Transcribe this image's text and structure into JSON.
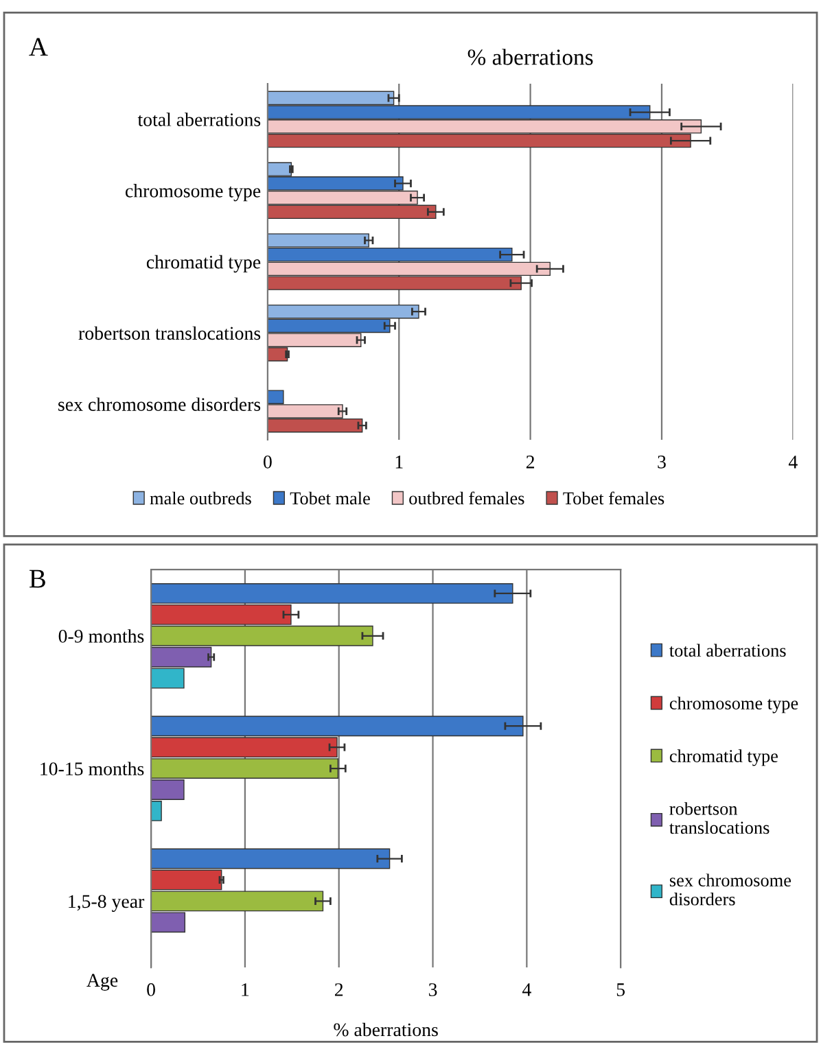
{
  "chart_data": [
    {
      "type": "bar",
      "orientation": "horizontal",
      "title": "% aberrations",
      "annotations": [
        "A"
      ],
      "categories": [
        "total aberrations",
        "chromosome type",
        "chromatid type",
        "robertson translocations",
        "sex chromosome disorders"
      ],
      "series": [
        {
          "name": "male outbreds",
          "color": "#8db3e2",
          "values": [
            0.96,
            0.18,
            0.77,
            1.15,
            null
          ],
          "errors": [
            0.04,
            0.01,
            0.03,
            0.05,
            null
          ]
        },
        {
          "name": "Tobet male",
          "color": "#3c78c8",
          "values": [
            2.91,
            1.03,
            1.86,
            0.93,
            0.12
          ],
          "errors": [
            0.15,
            0.06,
            0.09,
            0.04,
            null
          ]
        },
        {
          "name": "outbred females",
          "color": "#f2c6c6",
          "values": [
            3.3,
            1.14,
            2.15,
            0.71,
            0.57
          ],
          "errors": [
            0.15,
            0.05,
            0.1,
            0.03,
            0.03
          ]
        },
        {
          "name": "Tobet females",
          "color": "#c0504d",
          "values": [
            3.22,
            1.28,
            1.93,
            0.15,
            0.72
          ],
          "errors": [
            0.15,
            0.06,
            0.08,
            0.01,
            0.03
          ]
        }
      ],
      "xlim": [
        0,
        4
      ],
      "xticks": [
        0,
        1,
        2,
        3,
        4
      ],
      "grid": "x",
      "legend": "bottom"
    },
    {
      "type": "bar",
      "orientation": "horizontal",
      "annotations": [
        "B"
      ],
      "xlabel": "% aberrations",
      "ylabel": "Age",
      "categories": [
        "0-9 months",
        "10-15 months",
        "1,5-8 year"
      ],
      "series": [
        {
          "name": "total aberrations",
          "color": "#3c78c8",
          "values": [
            3.85,
            3.96,
            2.54
          ],
          "errors": [
            0.19,
            0.19,
            0.13
          ]
        },
        {
          "name": "chromosome type",
          "color": "#d03c3c",
          "values": [
            1.49,
            1.98,
            0.75
          ],
          "errors": [
            0.08,
            0.08,
            0.02
          ]
        },
        {
          "name": "chromatid type",
          "color": "#9bbb40",
          "values": [
            2.36,
            1.99,
            1.83
          ],
          "errors": [
            0.11,
            0.08,
            0.08
          ]
        },
        {
          "name": "robertson\ntranslocations",
          "color": "#7f5fb0",
          "values": [
            0.64,
            0.35,
            0.36
          ],
          "errors": [
            0.03,
            null,
            null
          ]
        },
        {
          "name": "sex chromosome\ndisorders",
          "color": "#31b5c9",
          "values": [
            0.35,
            0.11,
            null
          ],
          "errors": [
            null,
            null,
            null
          ]
        }
      ],
      "xlim": [
        0,
        5
      ],
      "xticks": [
        0,
        1,
        2,
        3,
        4,
        5
      ],
      "grid": "x",
      "legend": "right"
    }
  ]
}
